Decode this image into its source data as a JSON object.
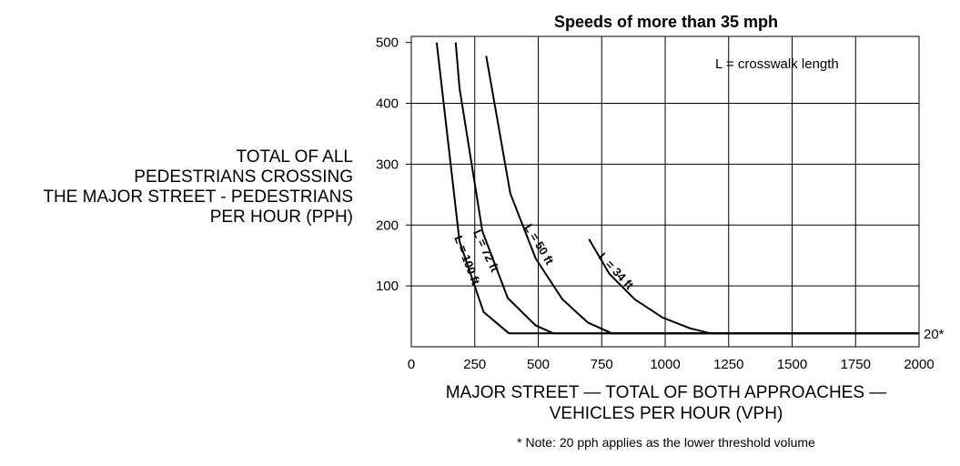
{
  "chart_data": {
    "type": "line",
    "title": "Speeds of more than 35 mph",
    "ylabel_lines": [
      "TOTAL OF ALL",
      "PEDESTRIANS CROSSING",
      "THE MAJOR STREET - PEDESTRIANS",
      "PER HOUR (PPH)"
    ],
    "xlabel_lines": [
      "MAJOR STREET — TOTAL OF BOTH APPROACHES —",
      "VEHICLES PER HOUR (VPH)"
    ],
    "xlim": [
      0,
      2000
    ],
    "ylim": [
      0,
      510
    ],
    "x_ticks": [
      0,
      250,
      500,
      750,
      1000,
      1250,
      1500,
      1750,
      2000
    ],
    "y_ticks": [
      100,
      200,
      300,
      400,
      500
    ],
    "x_gridlines": [
      250,
      500,
      750,
      1000,
      1250,
      1500,
      1750,
      2000
    ],
    "y_gridlines": [
      100,
      200,
      300,
      400
    ],
    "grid": true,
    "series": [
      {
        "name": "L = 100 ft",
        "points": [
          [
            100,
            500
          ],
          [
            190,
            173
          ],
          [
            285,
            57
          ],
          [
            385,
            22
          ],
          [
            2000,
            22
          ]
        ]
      },
      {
        "name": "L = 72 ft",
        "points": [
          [
            175,
            500
          ],
          [
            190,
            425
          ],
          [
            280,
            190
          ],
          [
            380,
            80
          ],
          [
            490,
            35
          ],
          [
            560,
            22
          ],
          [
            2000,
            22
          ]
        ]
      },
      {
        "name": "L = 50 ft",
        "points": [
          [
            295,
            478
          ],
          [
            390,
            252
          ],
          [
            490,
            145
          ],
          [
            595,
            78
          ],
          [
            695,
            40
          ],
          [
            790,
            22
          ],
          [
            2000,
            22
          ]
        ]
      },
      {
        "name": "L = 34 ft",
        "points": [
          [
            700,
            177
          ],
          [
            780,
            120
          ],
          [
            880,
            78
          ],
          [
            990,
            48
          ],
          [
            1100,
            30
          ],
          [
            1180,
            22
          ],
          [
            2000,
            22
          ]
        ]
      }
    ],
    "annotations": {
      "legend_note": "L = crosswalk length",
      "threshold_label": "20*",
      "threshold_value": 20
    },
    "footnote": "* Note: 20 pph applies as the lower threshold volume"
  }
}
